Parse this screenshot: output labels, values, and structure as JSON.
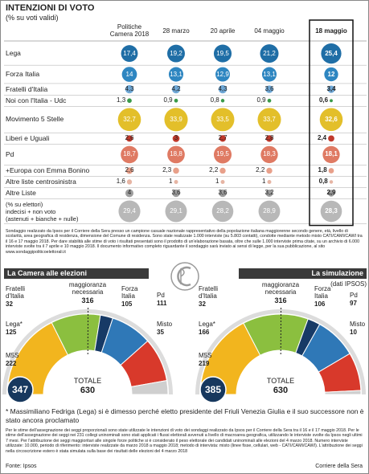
{
  "chart_data": [
    {
      "type": "bubblegrid",
      "title": "INTENZIONI DI VOTO",
      "subtitle": "(% su voti validi)",
      "categories": [
        "Politiche\nCamera 2018",
        "28 marzo",
        "20 aprile",
        "04 maggio",
        "18 maggio"
      ],
      "highlight": 4,
      "series": [
        {
          "name": "Lega",
          "color": "#1f6ea6",
          "values": [
            17.4,
            19.2,
            19.5,
            21.2,
            25.4
          ],
          "value_labels": [
            "17,4",
            "19,2",
            "19,5",
            "21,2",
            "25,4"
          ]
        },
        {
          "name": "Forza Italia",
          "color": "#2e86c1",
          "values": [
            14,
            13.1,
            12.9,
            13.1,
            12
          ],
          "value_labels": [
            "14",
            "13,1",
            "12,9",
            "13,1",
            "12"
          ]
        },
        {
          "name": "Fratelli d'Italia",
          "color": "#6fa8d6",
          "values": [
            4.3,
            4.2,
            4.3,
            3.6,
            3.4
          ],
          "value_labels": [
            "4,3",
            "4,2",
            "4,3",
            "3,6",
            "3,4"
          ]
        },
        {
          "name": "Noi con l'Italia - Udc",
          "color": "#3a9a4a",
          "values": [
            1.3,
            0.9,
            0.8,
            0.9,
            0.6
          ],
          "value_labels": [
            "1,3",
            "0,9",
            "0,8",
            "0,9",
            "0,6"
          ]
        },
        {
          "name": "Movimento 5 Stelle",
          "color": "#e3bf2a",
          "values": [
            32.7,
            33.9,
            33.5,
            33.7,
            32.6
          ],
          "value_labels": [
            "32,7",
            "33,9",
            "33,5",
            "33,7",
            "32,6"
          ]
        },
        {
          "name": "Liberi e Uguali",
          "color": "#c0392b",
          "values": [
            2.6,
            3,
            2.7,
            2.8,
            2.4
          ],
          "value_labels": [
            "2,6",
            "3",
            "2,7",
            "2,8",
            "2,4"
          ]
        },
        {
          "name": "Pd",
          "color": "#df7a63",
          "values": [
            18.7,
            18.8,
            19.5,
            18.3,
            18.1
          ],
          "value_labels": [
            "18,7",
            "18,8",
            "19,5",
            "18,3",
            "18,1"
          ]
        },
        {
          "name": "+Europa con Emma Bonino",
          "color": "#e8a08a",
          "values": [
            2.6,
            2.3,
            2.2,
            2.2,
            1.8
          ],
          "value_labels": [
            "2,6",
            "2,3",
            "2,2",
            "2,2",
            "1,8"
          ]
        },
        {
          "name": "Altre liste centrosinistra",
          "color": "#e6b5a4",
          "values": [
            1.6,
            1,
            1,
            1,
            0.8
          ],
          "value_labels": [
            "1,6",
            "1",
            "1",
            "1",
            "0,8"
          ]
        },
        {
          "name": "Altre Liste",
          "color": "#9e9e9e",
          "values": [
            4,
            3.6,
            3.6,
            3.2,
            2.9
          ],
          "value_labels": [
            "4",
            "3,6",
            "3,6",
            "3,2",
            "2,9"
          ]
        },
        {
          "name": "(% su elettori)\nindecisi + non voto\n(astenuti + bianche + nulle)",
          "color": "#b8b8b8",
          "values": [
            29.4,
            29.1,
            28.2,
            28.9,
            28.3
          ],
          "value_labels": [
            "29,4",
            "29,1",
            "28,2",
            "28,9",
            "28,3"
          ]
        }
      ]
    },
    {
      "type": "hemicycle",
      "title": "La Camera alle elezioni",
      "majority_label": "maggioranza\nnecessaria",
      "majority": 316,
      "total_label": "TOTALE",
      "total": 630,
      "bloc": 347,
      "categories": [
        "M5S",
        "Lega*",
        "Fratelli\nd'Italia",
        "Forza\nItalia",
        "Pd",
        "Misto"
      ],
      "values": [
        222,
        125,
        32,
        105,
        111,
        35
      ],
      "colors": [
        "#f2b51e",
        "#8bbf3f",
        "#173a66",
        "#2f78b7",
        "#d8392b",
        "#cfcfcf"
      ]
    },
    {
      "type": "hemicycle",
      "title": "La simulazione",
      "subtitle": "(dati IPSOS)",
      "majority_label": "maggioranza\nnecessaria",
      "majority": 316,
      "total_label": "TOTALE",
      "total": 630,
      "bloc": 385,
      "categories": [
        "M5S",
        "Lega*",
        "Fratelli\nd'Italia",
        "Forza\nItalia",
        "Pd",
        "Misto"
      ],
      "values": [
        219,
        166,
        32,
        106,
        97,
        10
      ],
      "colors": [
        "#f2b51e",
        "#8bbf3f",
        "#173a66",
        "#2f78b7",
        "#d8392b",
        "#cfcfcf"
      ]
    }
  ],
  "notes": {
    "method": "Sondaggio realizzato da Ipsos per il Corriere della Sera presso un campione casuale nazionale rappresentativo della popolazione italiana maggiorenne secondo genere, età, livello di scolarità, area geografica di residenza, dimensione del Comune di residenza. Sono state realizzate 1.000 interviste (su 5.803 contatti), condotte mediante metodo misto CATI/CAMI/CAWI tra il 16 e 17 maggio 2018. Per dare stabilità alle stime di voto i risultati presentati sono il prodotto di un'elaborazione basata, oltre che sulle 1.000 interviste prima citate, su un archivio di 6.000 interviste svolte tra il 7 aprile e 10 maggio 2018. Il documento informativo completo riguardante il sondaggio sarà inviato ai sensi di legge, per la sua pubblicazione, al sito www.sondaggipoliticoelettorali.it",
    "footnote": "* Massimiliano Fedriga (Lega) si è dimesso perché eletto presidente del Friuli Venezia Giulia e il suo successore non è stato ancora proclamato",
    "seats_method": "Per le stime dell'assegnazione dei seggi proporzionali sono state utilizzate le intenzioni di voto dei sondaggi realizzato da Ipsos per il Corriere della Sera tra il 16 e il 17 maggio 2018. Per le stime dell'assegnazione dei seggi nei 231 collegi uninominali sono stati applicati i flussi elettorali avvenuti a livello di macroarea geografica, utilizzando le interviste svolte da Ipsos negli ultimi 7 mesi. Per l'attribuzione dei seggi maggioritari alle singole forze politiche si è considerato il peso elettorale dei candidati uninominali alle elezioni del 4 marzo 2018. Numero interviste utilizzate: 10.000, periodo di riferimento: interviste realizzate da marzo 2018 a maggio 2018; metodo di intervista: misto (linee fisse, cellulari, web - CATI/CAMI/CAWI). L'attribuzione dei seggi nella circoscrizione estero è stata simulata sulla base dei risultati delle elezioni del 4 marzo 2018",
    "source": "Fonte: Ipsos",
    "publisher": "Corriere della Sera"
  }
}
